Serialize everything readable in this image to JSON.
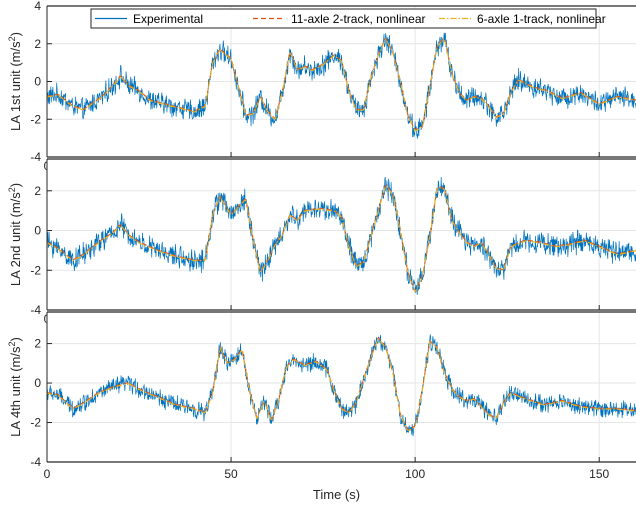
{
  "chart_data": {
    "type": "line",
    "layout": "3 vertically stacked subplots sharing x axis",
    "xlabel": "Time (s)",
    "xlim": [
      0,
      160
    ],
    "x_ticks": [
      "0",
      "50",
      "100",
      "150"
    ],
    "grid": true,
    "legend": {
      "placement": "top-center",
      "entries": [
        {
          "label": "Experimental",
          "color": "#0072BD",
          "style": "solid"
        },
        {
          "label": "11-axle 2-track, nonlinear",
          "color": "#D95319",
          "style": "dashed"
        },
        {
          "label": "6-axle 1-track, nonlinear",
          "color": "#EDB120",
          "style": "dashdot"
        }
      ]
    },
    "subplots": [
      {
        "ylabel": "LA 1st unit (m/s",
        "ylabel_sup": "2",
        "ylabel_end": ")",
        "ylim": [
          -4,
          4
        ],
        "y_ticks": [
          "4",
          "2",
          "0",
          "-2",
          "-4"
        ],
        "noise_amplitude": 0.45,
        "series": [
          {
            "name": "Experimental",
            "noisy": true
          },
          {
            "name": "11-axle 2-track, nonlinear"
          },
          {
            "name": "6-axle 1-track, nonlinear"
          }
        ],
        "x": [
          0,
          3,
          7,
          10,
          12,
          15,
          18,
          20,
          22,
          25,
          28,
          32,
          36,
          40,
          43,
          45,
          47,
          50,
          52,
          54,
          56,
          58,
          60,
          62,
          64,
          66,
          68,
          70,
          72,
          75,
          78,
          80,
          82,
          84,
          86,
          88,
          90,
          92,
          94,
          96,
          98,
          100,
          102,
          104,
          106,
          108,
          110,
          112,
          114,
          116,
          118,
          120,
          122,
          124,
          126,
          128,
          132,
          136,
          140,
          145,
          150,
          155,
          160
        ],
        "y": [
          -0.8,
          -0.7,
          -1.3,
          -1.5,
          -1.2,
          -0.8,
          -0.2,
          0.3,
          -0.2,
          -0.5,
          -1.0,
          -1.2,
          -1.4,
          -1.6,
          -1.3,
          1.0,
          1.7,
          1.2,
          -0.3,
          -1.8,
          -1.7,
          -0.8,
          -1.6,
          -2.0,
          -0.5,
          1.6,
          0.6,
          0.8,
          0.6,
          0.9,
          1.4,
          1.1,
          -0.5,
          -1.5,
          -1.5,
          0.2,
          1.4,
          2.3,
          1.5,
          0.0,
          -1.8,
          -2.6,
          -2.4,
          -0.3,
          1.9,
          2.3,
          0.4,
          -0.6,
          -1.0,
          -0.8,
          -0.9,
          -1.3,
          -1.9,
          -1.7,
          -0.6,
          0.1,
          -0.3,
          -0.5,
          -0.9,
          -0.6,
          -1.2,
          -0.8,
          -1.0
        ]
      },
      {
        "ylabel": "LA 2nd unit (m/s",
        "ylabel_sup": "2",
        "ylabel_end": ")",
        "ylim": [
          -4,
          3.6
        ],
        "y_ticks": [
          "2",
          "0",
          "-2",
          "-4"
        ],
        "noise_amplitude": 0.45,
        "series": [
          {
            "name": "Experimental",
            "noisy": true
          },
          {
            "name": "11-axle 2-track, nonlinear"
          },
          {
            "name": "6-axle 1-track, nonlinear"
          }
        ],
        "x": [
          0,
          3,
          7,
          10,
          14,
          18,
          20,
          22,
          25,
          30,
          35,
          40,
          43,
          45,
          47,
          50,
          52,
          54,
          56,
          58,
          60,
          62,
          64,
          66,
          68,
          70,
          74,
          78,
          80,
          82,
          84,
          86,
          88,
          90,
          92,
          94,
          96,
          98,
          100,
          102,
          104,
          106,
          108,
          110,
          112,
          114,
          116,
          118,
          120,
          122,
          124,
          126,
          130,
          134,
          138,
          142,
          146,
          150,
          155,
          160
        ],
        "y": [
          -0.6,
          -0.9,
          -1.5,
          -1.2,
          -0.6,
          -0.1,
          0.3,
          -0.2,
          -0.6,
          -1.0,
          -1.3,
          -1.5,
          -1.5,
          0.8,
          1.7,
          0.8,
          1.2,
          1.6,
          -0.5,
          -2.1,
          -1.5,
          -0.7,
          -0.2,
          0.8,
          0.5,
          1.0,
          1.1,
          1.0,
          0.7,
          -0.8,
          -1.8,
          -1.6,
          -0.3,
          1.0,
          2.3,
          1.8,
          0.0,
          -2.1,
          -3.1,
          -2.3,
          -0.3,
          2.2,
          2.1,
          0.5,
          -0.1,
          -0.6,
          -0.8,
          -0.6,
          -1.2,
          -1.9,
          -2.0,
          -0.8,
          -0.5,
          -0.6,
          -0.8,
          -0.7,
          -0.5,
          -0.8,
          -1.2,
          -1.0
        ]
      },
      {
        "ylabel": "LA 4th unit (m/s",
        "ylabel_sup": "2",
        "ylabel_end": ")",
        "ylim": [
          -4,
          3.6
        ],
        "y_ticks": [
          "2",
          "0",
          "-2",
          "-4"
        ],
        "noise_amplitude": 0.35,
        "series": [
          {
            "name": "Experimental",
            "noisy": true
          },
          {
            "name": "11-axle 2-track, nonlinear"
          },
          {
            "name": "6-axle 1-track, nonlinear"
          }
        ],
        "x": [
          0,
          3,
          7,
          10,
          14,
          18,
          22,
          26,
          30,
          35,
          40,
          43,
          45,
          47,
          49,
          51,
          53,
          55,
          57,
          59,
          61,
          63,
          65,
          67,
          70,
          73,
          76,
          78,
          80,
          82,
          84,
          86,
          88,
          90,
          92,
          94,
          96,
          98,
          100,
          102,
          104,
          106,
          108,
          110,
          112,
          114,
          116,
          118,
          120,
          122,
          124,
          126,
          130,
          135,
          140,
          145,
          150,
          155,
          160
        ],
        "y": [
          -0.5,
          -0.6,
          -1.3,
          -1.0,
          -0.5,
          -0.2,
          0.0,
          -0.4,
          -0.7,
          -1.1,
          -1.3,
          -1.5,
          -0.5,
          1.8,
          1.0,
          1.2,
          1.7,
          -0.4,
          -1.8,
          -0.9,
          -1.9,
          -0.8,
          0.8,
          1.2,
          0.9,
          1.1,
          0.7,
          -0.4,
          -1.3,
          -1.5,
          -1.0,
          0.2,
          1.3,
          2.3,
          1.8,
          0.5,
          -1.6,
          -2.4,
          -2.2,
          -0.3,
          2.1,
          1.8,
          0.5,
          -0.3,
          -0.7,
          -0.9,
          -0.8,
          -1.2,
          -1.6,
          -1.8,
          -1.0,
          -0.5,
          -0.8,
          -1.1,
          -0.9,
          -1.2,
          -1.3,
          -1.3,
          -1.4
        ]
      }
    ]
  }
}
